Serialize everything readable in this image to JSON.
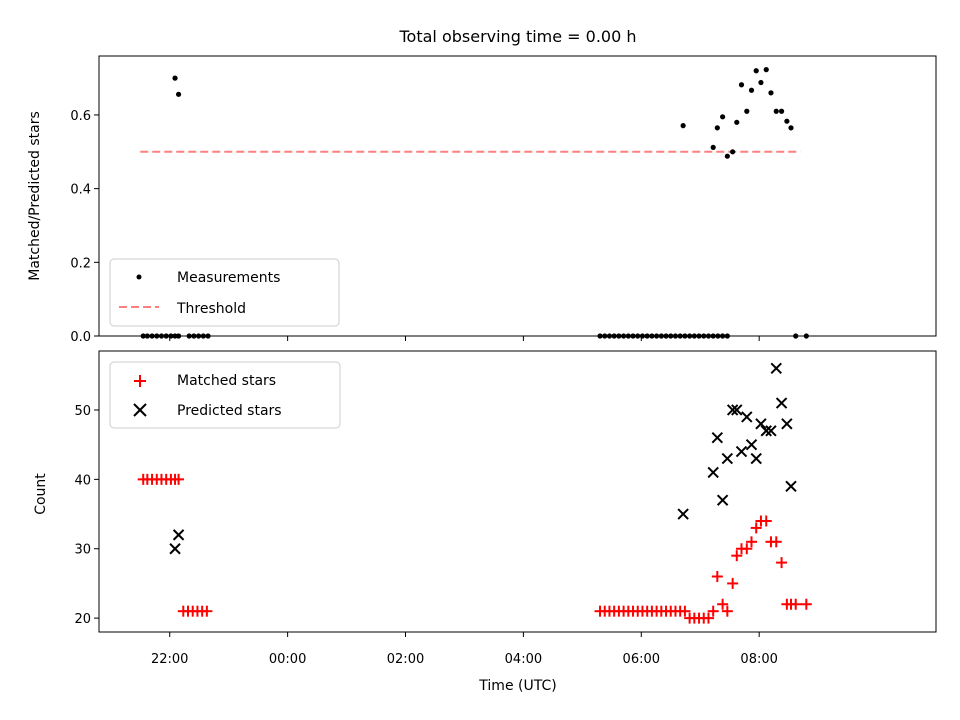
{
  "chart_data": {
    "title": "Total observing time = 0.00 h",
    "xlabel": "Time (UTC)",
    "x_ticks": [
      "22:00",
      "00:00",
      "02:00",
      "04:00",
      "06:00",
      "08:00"
    ],
    "x_tick_hours": [
      22,
      24,
      26,
      28,
      30,
      32
    ],
    "xlim": [
      20.8,
      35.0
    ],
    "panels": [
      {
        "type": "scatter",
        "ylabel": "Matched/Predicted stars",
        "ylim": [
          0,
          0.76
        ],
        "y_ticks": [
          0.0,
          0.2,
          0.4,
          0.6
        ],
        "y_tick_labels": [
          "0.0",
          "0.2",
          "0.4",
          "0.6"
        ],
        "legend": {
          "placement": "lower-left",
          "entries": [
            "Measurements",
            "Threshold"
          ]
        },
        "series": [
          {
            "name": "Measurements",
            "marker": "dot",
            "color": "#000000",
            "x": [
              21.55,
              21.62,
              21.7,
              21.78,
              21.86,
              21.94,
              22.02,
              22.09,
              22.15,
              22.33,
              22.41,
              22.49,
              22.57,
              22.65,
              29.3,
              29.38,
              29.46,
              29.54,
              29.62,
              29.7,
              29.78,
              29.86,
              29.94,
              30.02,
              30.1,
              30.18,
              30.26,
              30.34,
              30.42,
              30.5,
              30.58,
              30.66,
              30.74,
              30.82,
              30.9,
              30.98,
              31.06,
              31.14,
              31.22,
              31.3,
              31.38,
              31.46,
              22.09,
              22.15,
              30.71,
              31.22,
              31.29,
              31.38,
              31.46,
              31.55,
              31.62,
              31.7,
              31.79,
              31.87,
              31.95,
              32.03,
              32.12,
              32.2,
              32.29,
              32.38,
              32.47,
              32.54,
              32.62,
              32.8
            ],
            "y": [
              0,
              0,
              0,
              0,
              0,
              0,
              0,
              0,
              0,
              0,
              0,
              0,
              0,
              0,
              0,
              0,
              0,
              0,
              0,
              0,
              0,
              0,
              0,
              0,
              0,
              0,
              0,
              0,
              0,
              0,
              0,
              0,
              0,
              0,
              0,
              0,
              0,
              0,
              0,
              0,
              0,
              0,
              0.7,
              0.656,
              0.571,
              0.512,
              0.565,
              0.595,
              0.488,
              0.5,
              0.58,
              0.682,
              0.61,
              0.667,
              0.72,
              0.688,
              0.723,
              0.66,
              0.61,
              0.61,
              0.583,
              0.565,
              0,
              0
            ]
          }
        ],
        "threshold": {
          "name": "Threshold",
          "value": 0.5,
          "x_range": [
            21.5,
            32.7
          ],
          "color": "#ff7f7f"
        }
      },
      {
        "type": "scatter",
        "ylabel": "Count",
        "ylim": [
          18,
          58.5
        ],
        "y_ticks": [
          20,
          30,
          40,
          50
        ],
        "y_tick_labels": [
          "20",
          "30",
          "40",
          "50"
        ],
        "legend": {
          "placement": "upper-left",
          "entries": [
            "Matched stars",
            "Predicted stars"
          ]
        },
        "series": [
          {
            "name": "Matched stars",
            "marker": "plus",
            "color": "#ff0000",
            "x": [
              21.55,
              21.62,
              21.7,
              21.78,
              21.86,
              21.94,
              22.02,
              22.09,
              22.15,
              22.23,
              22.31,
              22.39,
              22.47,
              22.55,
              22.63,
              29.3,
              29.38,
              29.46,
              29.54,
              29.62,
              29.7,
              29.78,
              29.86,
              29.94,
              30.02,
              30.1,
              30.18,
              30.26,
              30.34,
              30.42,
              30.5,
              30.58,
              30.66,
              30.74,
              30.82,
              30.9,
              30.98,
              31.06,
              31.14,
              31.22,
              31.29,
              31.38,
              31.46,
              31.55,
              31.62,
              31.7,
              31.79,
              31.87,
              31.95,
              32.03,
              32.12,
              32.2,
              32.29,
              32.38,
              32.47,
              32.54,
              32.62,
              32.8
            ],
            "y": [
              40,
              40,
              40,
              40,
              40,
              40,
              40,
              40,
              40,
              21,
              21,
              21,
              21,
              21,
              21,
              21,
              21,
              21,
              21,
              21,
              21,
              21,
              21,
              21,
              21,
              21,
              21,
              21,
              21,
              21,
              21,
              21,
              21,
              21,
              20,
              20,
              20,
              20,
              20,
              21,
              26,
              22,
              21,
              25,
              29,
              30,
              30,
              31,
              33,
              34,
              34,
              31,
              31,
              28,
              22,
              22,
              22,
              22
            ]
          },
          {
            "name": "Predicted stars",
            "marker": "x",
            "color": "#000000",
            "x": [
              22.09,
              22.15,
              30.71,
              31.22,
              31.29,
              31.38,
              31.46,
              31.55,
              31.62,
              31.7,
              31.79,
              31.87,
              31.95,
              32.03,
              32.12,
              32.2,
              32.29,
              32.38,
              32.47,
              32.54
            ],
            "y": [
              30,
              32,
              35,
              41,
              46,
              37,
              43,
              50,
              50,
              44,
              49,
              45,
              43,
              48,
              47,
              47,
              56,
              51,
              48,
              39
            ]
          }
        ]
      }
    ]
  }
}
